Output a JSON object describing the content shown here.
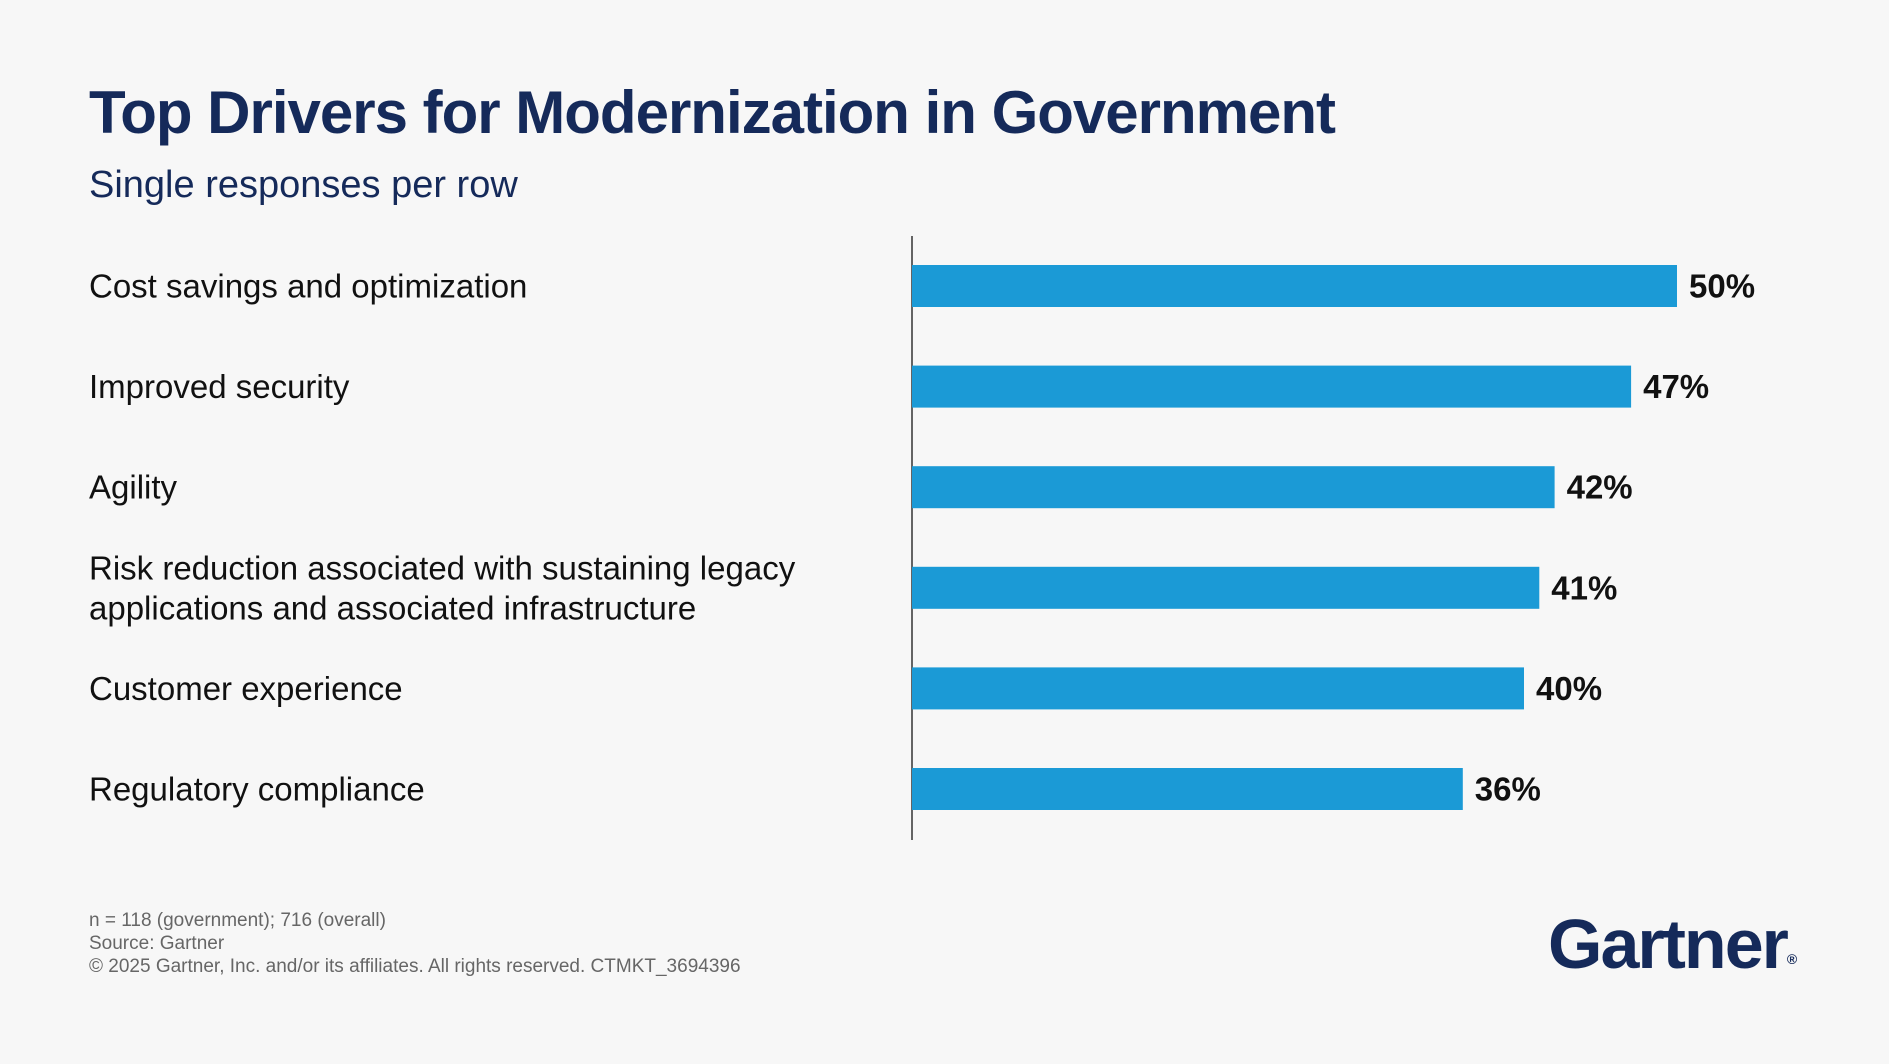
{
  "header": {
    "title": "Top Drivers for Modernization in Government",
    "subtitle": "Single responses per row"
  },
  "chart_data": {
    "type": "bar",
    "orientation": "horizontal",
    "title": "Top Drivers for Modernization in Government",
    "subtitle": "Single responses per row",
    "categories": [
      [
        "Cost savings and optimization"
      ],
      [
        "Improved security"
      ],
      [
        "Agility"
      ],
      [
        "Risk reduction associated with sustaining legacy",
        "applications and associated infrastructure"
      ],
      [
        "Customer experience"
      ],
      [
        "Regulatory compliance"
      ]
    ],
    "values": [
      50,
      47,
      42,
      41,
      40,
      36
    ],
    "value_labels": [
      "50%",
      "47%",
      "42%",
      "41%",
      "40%",
      "36%"
    ],
    "xlim": [
      0,
      60
    ],
    "grid": false,
    "bar_color": "#1b9ad6"
  },
  "footnotes": {
    "sample": "n = 118 (government); 716 (overall)",
    "source": "Source: Gartner",
    "copyright": "© 2025 Gartner, Inc. and/or its affiliates. All rights reserved. CTMKT_3694396"
  },
  "logo": {
    "text": "Gartner",
    "mark": "®"
  },
  "colors": {
    "title": "#152a5a",
    "bar": "#1b9ad6",
    "axis": "#333333",
    "text": "#111111",
    "footnote": "#666666",
    "background": "#f7f7f7"
  }
}
